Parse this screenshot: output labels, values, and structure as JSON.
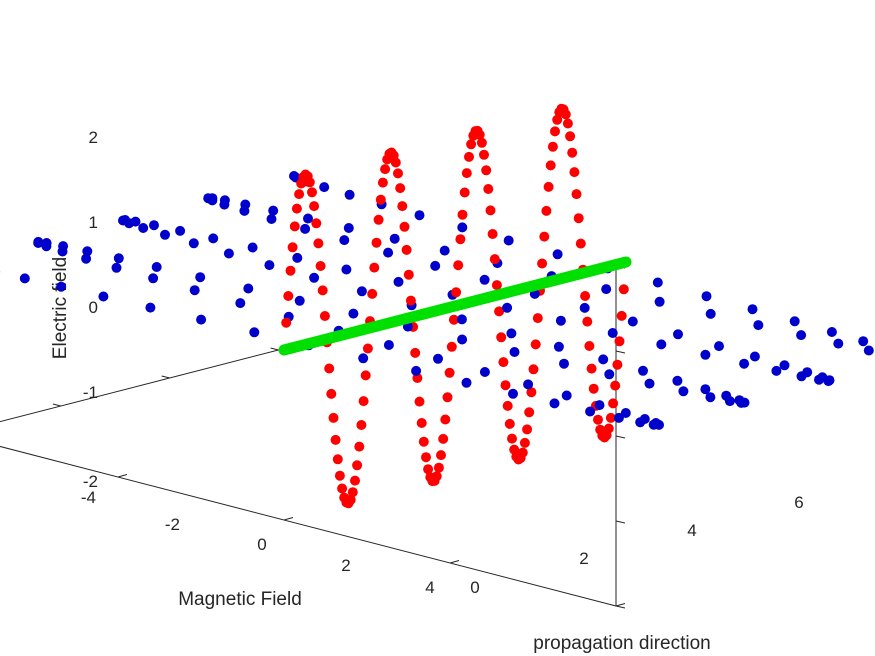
{
  "chart_data": {
    "type": "scatter",
    "view": "3d",
    "xlabel": "propagation direction",
    "ylabel": "Magnetic Field",
    "zlabel": "Electric field",
    "xlim": [
      0,
      6.2832
    ],
    "ylim": [
      -4,
      4
    ],
    "zlim": [
      -2,
      2
    ],
    "xticks": [
      "0",
      "2",
      "4",
      "6"
    ],
    "yticks": [
      "-4",
      "-2",
      "0",
      "2",
      "4"
    ],
    "zticks": [
      "-2",
      "-1",
      "0",
      "1",
      "2"
    ],
    "grid": false,
    "legend": "none",
    "series": [
      {
        "kind": "points",
        "color": "#ff0000",
        "description_plane": "electric",
        "x_start": 0,
        "x_end": 6.2832,
        "count": 160,
        "frequency": 4,
        "amplitude": 2,
        "function": "sin"
      },
      {
        "kind": "points",
        "color": "#0000cc",
        "description_plane": "magnetic",
        "x_start": 0,
        "x_end": 6.2832,
        "count": 160,
        "frequency": 4,
        "amplitude": 4,
        "function": "cos"
      },
      {
        "kind": "line",
        "color": "#00e000",
        "from": [
          0,
          0,
          0
        ],
        "to": [
          6.2832,
          0,
          0
        ]
      }
    ]
  }
}
